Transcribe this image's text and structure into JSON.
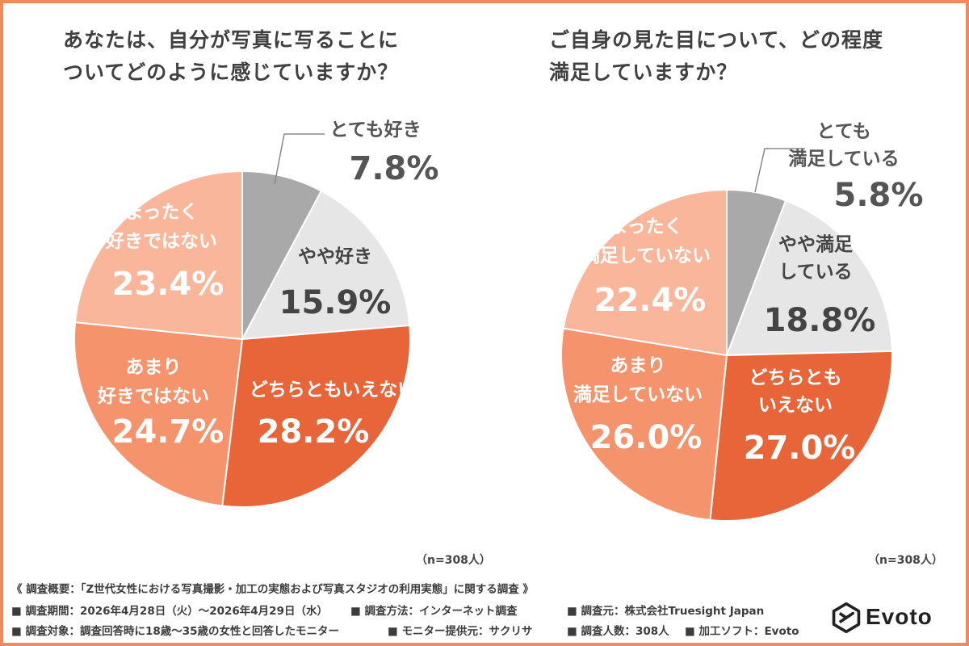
{
  "colors": {
    "border": "#f08a5d",
    "very_like": "#a9a9a9",
    "somewhat_like": "#e6e6e6",
    "neutral": "#e8653a",
    "not_much": "#f5936c",
    "not_at_all": "#f9b69b"
  },
  "chart_data": [
    {
      "type": "pie",
      "title": [
        "あなたは、自分が写真に写ることに",
        "ついてどのように感じていますか？"
      ],
      "n_label": "（n=308人）",
      "slices": [
        {
          "label": [
            "とても好き"
          ],
          "value": 7.8,
          "value_text": "7.8%",
          "color": "#a9a9a9"
        },
        {
          "label": [
            "やや好き"
          ],
          "value": 15.9,
          "value_text": "15.9%",
          "color": "#e6e6e6"
        },
        {
          "label": [
            "どちらともいえない"
          ],
          "value": 28.2,
          "value_text": "28.2%",
          "color": "#e8653a"
        },
        {
          "label": [
            "あまり",
            "好きではない"
          ],
          "value": 24.7,
          "value_text": "24.7%",
          "color": "#f5936c"
        },
        {
          "label": [
            "まったく",
            "好きではない"
          ],
          "value": 23.4,
          "value_text": "23.4%",
          "color": "#f9b69b"
        }
      ]
    },
    {
      "type": "pie",
      "title": [
        "ご自身の見た目について、どの程度",
        "満足していますか？"
      ],
      "n_label": "（n=308人）",
      "slices": [
        {
          "label": [
            "とても",
            "満足している"
          ],
          "value": 5.8,
          "value_text": "5.8%",
          "color": "#a9a9a9"
        },
        {
          "label": [
            "やや満足",
            "している"
          ],
          "value": 18.8,
          "value_text": "18.8%",
          "color": "#e6e6e6"
        },
        {
          "label": [
            "どちらとも",
            "いえない"
          ],
          "value": 27.0,
          "value_text": "27.0%",
          "color": "#e8653a"
        },
        {
          "label": [
            "あまり",
            "満足していない"
          ],
          "value": 26.0,
          "value_text": "26.0%",
          "color": "#f5936c"
        },
        {
          "label": [
            "まったく",
            "満足していない"
          ],
          "value": 22.4,
          "value_text": "22.4%",
          "color": "#f9b69b"
        }
      ]
    }
  ],
  "survey": {
    "heading": "《 調査概要：「Z世代女性における写真撮影・加工の実態および写真スタジオの利用実態」に関する調査 》",
    "period": "■ 調査期間：2026年4月28日（火）〜2026年4月29日（水）",
    "method": "■ 調査方法：インターネット調査",
    "source": "■ 調査元：株式会社Truesight Japan",
    "target": "■ 調査対象：調査回答時に18歳〜35歳の女性と回答したモニター",
    "provider": "■ モニター提供元：サクリサ",
    "count": "■ 調査人数：308人",
    "software": "■ 加工ソフト：Evoto"
  },
  "logo": {
    "text": "Evoto",
    "icon": "evoto-logo-icon"
  }
}
